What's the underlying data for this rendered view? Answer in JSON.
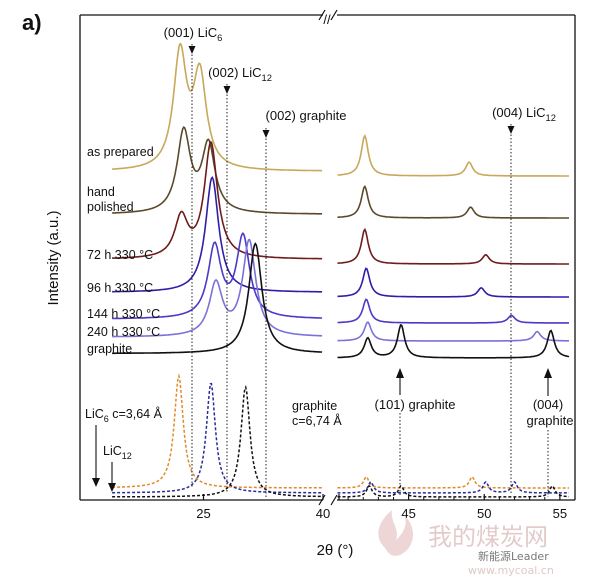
{
  "chart_data": {
    "type": "line",
    "panel_label": "a)",
    "xlabel": "2θ (°)",
    "ylabel": "Intensity (a.u.)",
    "x_ticks_left": [
      25,
      40
    ],
    "x_ticks_right": [
      40,
      45,
      50,
      55
    ],
    "axis_break": "//",
    "xlim_left": [
      20,
      30
    ],
    "xlim_right": [
      40,
      56
    ],
    "series": [
      {
        "name": "as prepared",
        "color": "#c8a85a",
        "peaks": [
          {
            "x": 24.05,
            "h": 1.0
          },
          {
            "x": 24.85,
            "h": 0.8
          },
          {
            "x": 42.1,
            "h": 0.35
          },
          {
            "x": 49.0,
            "h": 0.12
          }
        ]
      },
      {
        "name": "hand polished",
        "color": "#5a4a2a",
        "peaks": [
          {
            "x": 24.2,
            "h": 0.9
          },
          {
            "x": 25.2,
            "h": 0.75
          },
          {
            "x": 42.1,
            "h": 0.35
          },
          {
            "x": 49.1,
            "h": 0.12
          }
        ]
      },
      {
        "name": "72 h 330 °C",
        "color": "#6e1c1c",
        "peaks": [
          {
            "x": 24.1,
            "h": 0.35
          },
          {
            "x": 25.3,
            "h": 1.0
          },
          {
            "x": 42.1,
            "h": 0.3
          },
          {
            "x": 50.1,
            "h": 0.08
          }
        ]
      },
      {
        "name": "96 h 330 °C",
        "color": "#2e1fa6",
        "peaks": [
          {
            "x": 25.35,
            "h": 1.0
          },
          {
            "x": 42.2,
            "h": 0.25
          },
          {
            "x": 49.8,
            "h": 0.08
          }
        ]
      },
      {
        "name": "144 h 330 °C",
        "color": "#4a3ac8",
        "peaks": [
          {
            "x": 25.45,
            "h": 0.75
          },
          {
            "x": 26.6,
            "h": 0.85
          },
          {
            "x": 42.2,
            "h": 0.25
          },
          {
            "x": 51.8,
            "h": 0.08
          }
        ]
      },
      {
        "name": "240 h 330 °C",
        "color": "#7a72d8",
        "peaks": [
          {
            "x": 25.5,
            "h": 0.55
          },
          {
            "x": 26.85,
            "h": 1.0
          },
          {
            "x": 42.3,
            "h": 0.2
          },
          {
            "x": 53.5,
            "h": 0.1
          }
        ]
      },
      {
        "name": "graphite",
        "color": "#111111",
        "peaks": [
          {
            "x": 27.1,
            "h": 1.0
          },
          {
            "x": 42.3,
            "h": 0.18
          },
          {
            "x": 44.5,
            "h": 0.3
          },
          {
            "x": 54.4,
            "h": 0.25
          }
        ]
      }
    ],
    "reference_patterns": [
      {
        "name": "LiC6 c=3,64 Å",
        "color": "#e08a2a",
        "peaks": [
          24.0,
          42.2,
          49.2
        ]
      },
      {
        "name": "LiC12",
        "color": "#2a2a9a",
        "peaks": [
          25.3,
          42.5,
          50.1,
          52.0
        ]
      },
      {
        "name": "graphite c=6,74 Å",
        "color": "#111111",
        "peaks": [
          26.7,
          42.4,
          44.5,
          54.5
        ]
      }
    ],
    "annotations": [
      {
        "text_main": "(001) LiC",
        "text_sub": "6",
        "x": 24.0
      },
      {
        "text_main": "(002) LiC",
        "text_sub": "12",
        "x": 25.3
      },
      {
        "text_main": "(002) graphite",
        "text_sub": "",
        "x": 26.75
      },
      {
        "text_main": "(004) LiC",
        "text_sub": "12",
        "x": 52.0
      },
      {
        "text_main": "(101) graphite",
        "text_sub": "",
        "x": 44.5
      },
      {
        "text_main": "(004)",
        "text_sub": "",
        "x": 54.5
      },
      {
        "text_main": "graphite",
        "text_sub": "",
        "x": 54.5
      }
    ],
    "ref_labels": {
      "lic6_main": "LiC",
      "lic6_sub": "6",
      "lic6_tail": " c=3,64 Å",
      "lic12_main": "LiC",
      "lic12_sub": "12",
      "graphite_line1": "graphite",
      "graphite_line2": "c=6,74 Å"
    },
    "legend_placement": "labels left of curves",
    "grid": false
  },
  "watermark": {
    "text_cn": "我的煤炭网",
    "url": "www.mycoal.cn",
    "sub": "新能源Leader"
  }
}
